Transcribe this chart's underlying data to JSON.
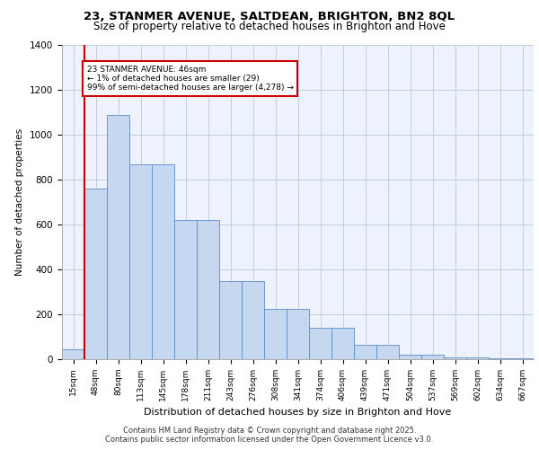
{
  "title_line1": "23, STANMER AVENUE, SALTDEAN, BRIGHTON, BN2 8QL",
  "title_line2": "Size of property relative to detached houses in Brighton and Hove",
  "xlabel": "Distribution of detached houses by size in Brighton and Hove",
  "ylabel": "Number of detached properties",
  "categories": [
    "15sqm",
    "48sqm",
    "80sqm",
    "113sqm",
    "145sqm",
    "178sqm",
    "211sqm",
    "243sqm",
    "276sqm",
    "308sqm",
    "341sqm",
    "374sqm",
    "406sqm",
    "439sqm",
    "471sqm",
    "504sqm",
    "537sqm",
    "569sqm",
    "602sqm",
    "634sqm",
    "667sqm"
  ],
  "values": [
    45,
    760,
    1090,
    870,
    870,
    620,
    620,
    350,
    350,
    225,
    225,
    140,
    140,
    65,
    65,
    20,
    20,
    10,
    10,
    5,
    5
  ],
  "bar_color": "#c5d8f0",
  "bar_edge_color": "#5b8cc8",
  "vline_x": 0.5,
  "vline_color": "#cc0000",
  "annotation_text": "23 STANMER AVENUE: 46sqm\n← 1% of detached houses are smaller (29)\n99% of semi-detached houses are larger (4,278) →",
  "annotation_box_color": "#cc0000",
  "background_color": "#edf2fc",
  "grid_color": "#c0cce0",
  "ylim": [
    0,
    1400
  ],
  "yticks": [
    0,
    200,
    400,
    600,
    800,
    1000,
    1200,
    1400
  ],
  "footer_line1": "Contains HM Land Registry data © Crown copyright and database right 2025.",
  "footer_line2": "Contains public sector information licensed under the Open Government Licence v3.0."
}
